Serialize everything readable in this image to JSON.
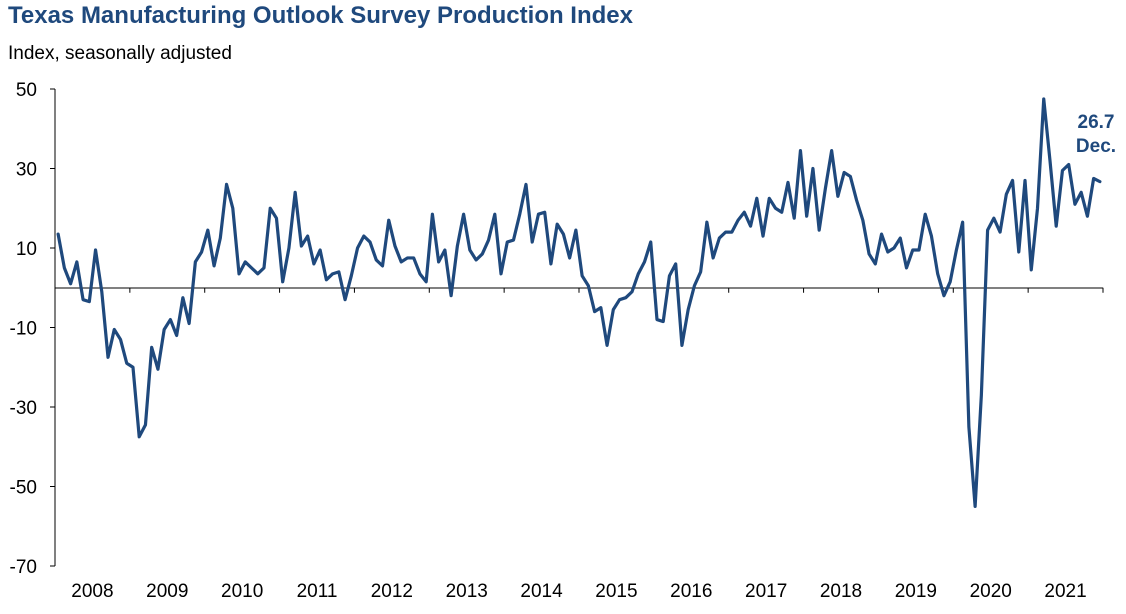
{
  "chart_data": {
    "type": "line",
    "title": "Texas Manufacturing Outlook Survey Production Index",
    "subtitle": "Index, seasonally adjusted",
    "xlabel": "",
    "ylabel": "",
    "ylim": [
      -70,
      50
    ],
    "yticks": [
      50,
      30,
      10,
      -10,
      -30,
      -50,
      -70
    ],
    "year_labels": [
      "2008",
      "2009",
      "2010",
      "2011",
      "2012",
      "2013",
      "2014",
      "2015",
      "2016",
      "2017",
      "2018",
      "2019",
      "2020",
      "2021"
    ],
    "start": "2008-01",
    "end": "2021-12",
    "series": [
      {
        "name": "Production Index",
        "color": "#1f497d",
        "values": [
          13.5,
          5.0,
          1.0,
          6.5,
          -3.0,
          -3.5,
          9.5,
          -1.0,
          -17.5,
          -10.5,
          -13.0,
          -19.0,
          -20.0,
          -37.5,
          -34.5,
          -15.0,
          -20.5,
          -10.5,
          -8.0,
          -12.0,
          -2.5,
          -9.0,
          6.5,
          9.0,
          14.5,
          5.5,
          12.5,
          26.0,
          20.0,
          3.5,
          6.5,
          5.0,
          3.5,
          5.0,
          20.0,
          17.5,
          1.5,
          10.0,
          24.0,
          10.5,
          13.0,
          6.0,
          9.5,
          2.0,
          3.5,
          4.0,
          -3.0,
          3.0,
          10.0,
          13.0,
          11.5,
          7.0,
          5.5,
          17.0,
          10.5,
          6.5,
          7.5,
          7.5,
          3.5,
          1.5,
          18.5,
          6.5,
          9.5,
          -2.0,
          10.5,
          18.5,
          9.5,
          7.0,
          8.5,
          12.0,
          18.5,
          3.5,
          11.5,
          12.0,
          18.5,
          26.0,
          11.5,
          18.5,
          19.0,
          6.0,
          16.0,
          13.5,
          7.5,
          14.5,
          3.0,
          0.5,
          -6.0,
          -5.0,
          -14.5,
          -5.5,
          -3.0,
          -2.5,
          -1.0,
          3.5,
          6.5,
          11.5,
          -8.0,
          -8.5,
          3.0,
          6.0,
          -14.5,
          -5.5,
          0.5,
          4.0,
          16.5,
          7.5,
          12.5,
          14.0,
          14.0,
          17.0,
          19.0,
          15.5,
          22.5,
          13.0,
          22.5,
          20.0,
          19.0,
          26.5,
          17.5,
          34.5,
          18.0,
          30.0,
          14.5,
          25.0,
          34.5,
          23.0,
          29.0,
          28.0,
          22.0,
          17.0,
          8.5,
          6.0,
          13.5,
          9.0,
          10.0,
          12.5,
          5.0,
          9.5,
          9.5,
          18.5,
          13.0,
          3.5,
          -2.0,
          1.5,
          9.5,
          16.5,
          -35.0,
          -55.0,
          -27.0,
          14.5,
          17.5,
          14.0,
          23.5,
          27.0,
          9.0,
          27.0,
          4.5,
          20.0,
          47.5,
          32.0,
          15.5,
          29.5,
          31.0,
          21.0,
          24.0,
          18.0,
          27.5,
          26.7
        ]
      }
    ],
    "annotation": {
      "value": "26.7",
      "label": "Dec."
    }
  }
}
